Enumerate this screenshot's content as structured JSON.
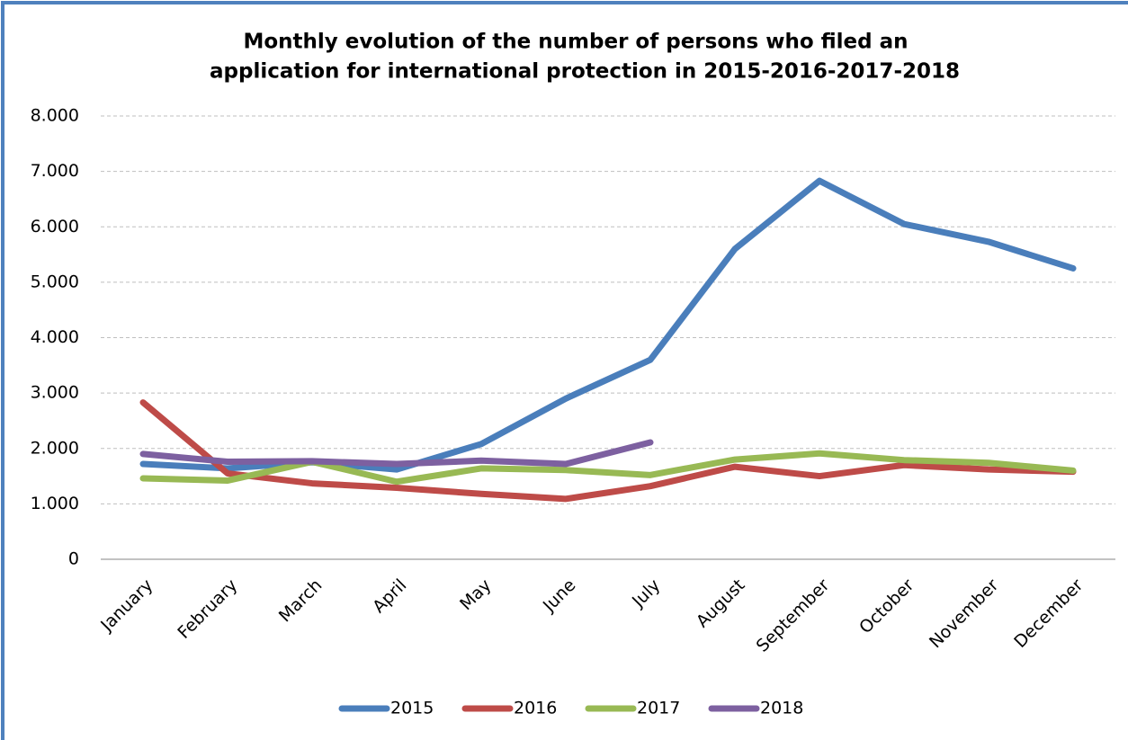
{
  "chart_data": {
    "type": "line",
    "title": [
      "Monthly evolution of the number of persons who filed an",
      "application for international protection in 2015-2016-2017-2018"
    ],
    "categories": [
      "January",
      "February",
      "March",
      "April",
      "May",
      "June",
      "July",
      "August",
      "September",
      "October",
      "November",
      "December"
    ],
    "series": [
      {
        "name": "2015",
        "color": "#4a7ebb",
        "values": [
          1720,
          1640,
          1750,
          1620,
          2080,
          2900,
          3600,
          5600,
          6830,
          6050,
          5730,
          5250
        ]
      },
      {
        "name": "2016",
        "color": "#be4b48",
        "values": [
          2830,
          1550,
          1370,
          1290,
          1180,
          1090,
          1320,
          1670,
          1500,
          1700,
          1620,
          1580
        ]
      },
      {
        "name": "2017",
        "color": "#98b954",
        "values": [
          1460,
          1420,
          1760,
          1400,
          1640,
          1610,
          1520,
          1800,
          1910,
          1790,
          1740,
          1600
        ]
      },
      {
        "name": "2018",
        "color": "#7d60a0",
        "values": [
          1900,
          1760,
          1770,
          1720,
          1780,
          1720,
          2110,
          null,
          null,
          null,
          null,
          null
        ]
      }
    ],
    "ylim": [
      0,
      8000
    ],
    "yticks": [
      0,
      {
        "value": 1000,
        "label": "1.000"
      },
      {
        "value": 2000,
        "label": "2.000"
      },
      {
        "value": 3000,
        "label": "3.000"
      },
      {
        "value": 4000,
        "label": "4.000"
      },
      {
        "value": 5000,
        "label": "5.000"
      },
      {
        "value": 6000,
        "label": "6.000"
      },
      {
        "value": 7000,
        "label": "7.000"
      },
      {
        "value": 8000,
        "label": "8.000"
      }
    ],
    "grid": true,
    "legend": "bottom"
  }
}
